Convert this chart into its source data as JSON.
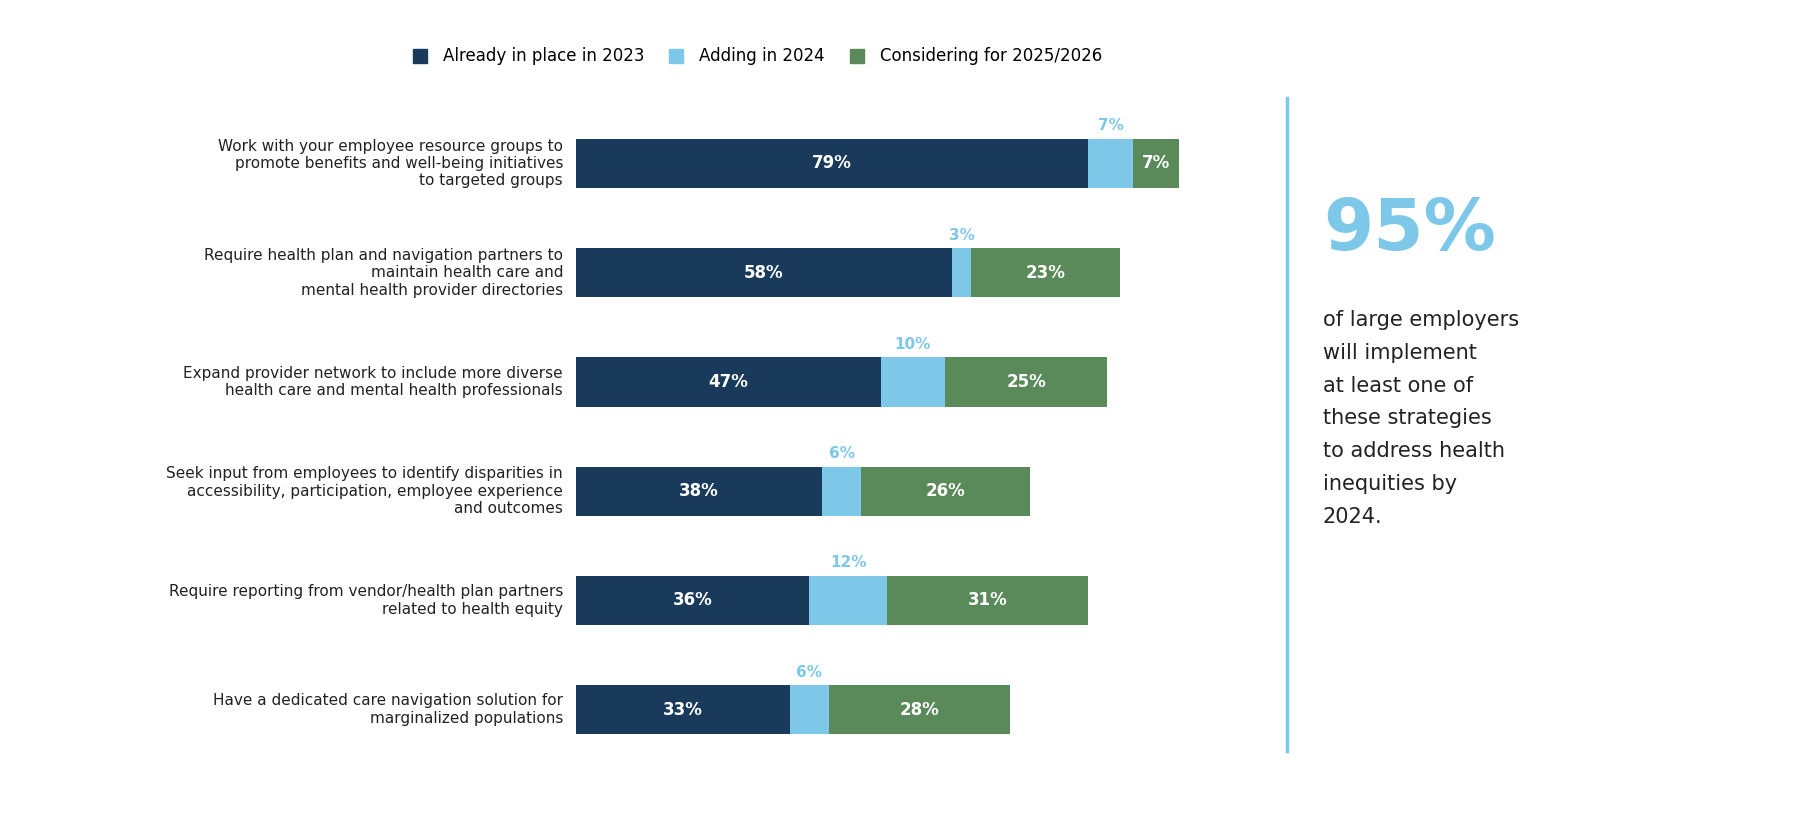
{
  "categories": [
    "Work with your employee resource groups to\npromote benefits and well-being initiatives\nto targeted groups",
    "Require health plan and navigation partners to\nmaintain health care and\nmental health provider directories",
    "Expand provider network to include more diverse\nhealth care and mental health professionals",
    "Seek input from employees to identify disparities in\naccessibility, participation, employee experience\nand outcomes",
    "Require reporting from vendor/health plan partners\nrelated to health equity",
    "Have a dedicated care navigation solution for\nmarginalized populations"
  ],
  "already_2023": [
    79,
    58,
    47,
    38,
    36,
    33
  ],
  "adding_2024": [
    7,
    3,
    10,
    6,
    12,
    6
  ],
  "considering_2526": [
    7,
    23,
    25,
    26,
    31,
    28
  ],
  "color_already": "#1a3a5c",
  "color_adding": "#7dc8e8",
  "color_considering": "#5a8a5a",
  "legend_labels": [
    "Already in place in 2023",
    "Adding in 2024",
    "Considering for 2025/2026"
  ],
  "sidebar_percent": "95%",
  "sidebar_text": "of large employers\nwill implement\nat least one of\nthese strategies\nto address health\ninequities by\n2024.",
  "sidebar_line_color": "#7dc8e8",
  "sidebar_percent_color": "#7dc8e8",
  "background_color": "#ffffff",
  "bar_height": 0.45,
  "bar_gap": 0.15
}
